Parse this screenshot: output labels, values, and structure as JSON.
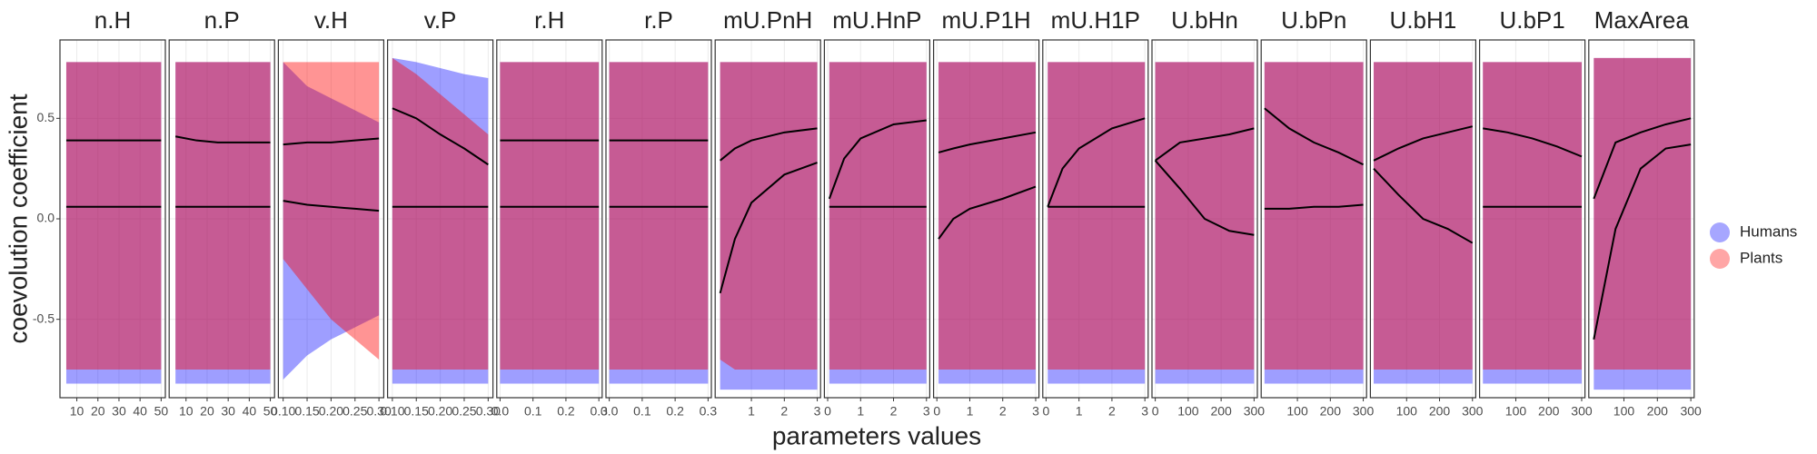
{
  "chart_data": {
    "type": "scatter",
    "x_label": "parameters values",
    "y_label": "coevolution coefficient",
    "ylim": [
      -0.89,
      0.89
    ],
    "yticks": [
      -0.5,
      {
        "value": 0,
        "label": "0.0"
      },
      0.5
    ],
    "grid": true,
    "legend": "right",
    "series": [
      {
        "name": "Humans",
        "color": "#0000ff"
      },
      {
        "name": "Plants",
        "color": "#ff0000"
      }
    ],
    "panels": [
      {
        "title": "n.H",
        "xlim": [
          2,
          52
        ],
        "xticks": [
          10,
          20,
          30,
          40,
          50
        ],
        "x": [
          5,
          15,
          25,
          35,
          50
        ],
        "smooth": [
          [
            0.06,
            0.06,
            0.06,
            0.06,
            0.06
          ],
          [
            0.39,
            0.39,
            0.39,
            0.39,
            0.39
          ]
        ],
        "low": [
          [
            -0.82,
            -0.82,
            -0.82,
            -0.82,
            -0.82
          ],
          [
            -0.75,
            -0.75,
            -0.75,
            -0.75,
            -0.75
          ]
        ],
        "high": [
          [
            0.78,
            0.78,
            0.78,
            0.78,
            0.78
          ],
          [
            0.78,
            0.78,
            0.78,
            0.78,
            0.78
          ]
        ]
      },
      {
        "title": "n.P",
        "xlim": [
          2,
          52
        ],
        "xticks": [
          10,
          20,
          30,
          40,
          50
        ],
        "x": [
          5,
          15,
          25,
          35,
          50
        ],
        "smooth": [
          [
            0.06,
            0.06,
            0.06,
            0.06,
            0.06
          ],
          [
            0.41,
            0.39,
            0.38,
            0.38,
            0.38
          ]
        ],
        "low": [
          [
            -0.82,
            -0.82,
            -0.82,
            -0.82,
            -0.82
          ],
          [
            -0.75,
            -0.75,
            -0.75,
            -0.75,
            -0.75
          ]
        ],
        "high": [
          [
            0.78,
            0.78,
            0.78,
            0.78,
            0.78
          ],
          [
            0.78,
            0.78,
            0.78,
            0.78,
            0.78
          ]
        ]
      },
      {
        "title": "v.H",
        "xlim": [
          0.09,
          0.31
        ],
        "xticks": [
          {
            "value": 0.1,
            "label": "0.10"
          },
          0.15,
          {
            "value": 0.2,
            "label": "0.20"
          },
          0.25,
          {
            "value": 0.3,
            "label": "0.30"
          }
        ],
        "x": [
          0.1,
          0.15,
          0.2,
          0.25,
          0.3
        ],
        "smooth": [
          [
            0.09,
            0.07,
            0.06,
            0.05,
            0.04
          ],
          [
            0.37,
            0.38,
            0.38,
            0.39,
            0.4
          ]
        ],
        "low": [
          [
            -0.8,
            -0.68,
            -0.6,
            -0.54,
            -0.48
          ],
          [
            -0.2,
            -0.35,
            -0.5,
            -0.6,
            -0.7
          ]
        ],
        "high": [
          [
            0.78,
            0.66,
            0.6,
            0.54,
            0.48
          ],
          [
            0.78,
            0.78,
            0.78,
            0.78,
            0.78
          ]
        ]
      },
      {
        "title": "v.P",
        "xlim": [
          0.09,
          0.31
        ],
        "xticks": [
          {
            "value": 0.1,
            "label": "0.10"
          },
          0.15,
          {
            "value": 0.2,
            "label": "0.20"
          },
          0.25,
          {
            "value": 0.3,
            "label": "0.30"
          }
        ],
        "x": [
          0.1,
          0.15,
          0.2,
          0.25,
          0.3
        ],
        "smooth": [
          [
            0.06,
            0.06,
            0.06,
            0.06,
            0.06
          ],
          [
            0.55,
            0.5,
            0.42,
            0.35,
            0.27
          ]
        ],
        "low": [
          [
            -0.82,
            -0.82,
            -0.82,
            -0.82,
            -0.82
          ],
          [
            -0.75,
            -0.75,
            -0.75,
            -0.75,
            -0.75
          ]
        ],
        "high": [
          [
            0.8,
            0.78,
            0.75,
            0.72,
            0.7
          ],
          [
            0.8,
            0.72,
            0.62,
            0.52,
            0.42
          ]
        ]
      },
      {
        "title": "r.H",
        "xlim": [
          -0.01,
          0.31
        ],
        "xticks": [
          {
            "value": 0,
            "label": "0.0"
          },
          0.1,
          0.2,
          0.3
        ],
        "x": [
          0,
          0.075,
          0.15,
          0.225,
          0.3
        ],
        "smooth": [
          [
            0.06,
            0.06,
            0.06,
            0.06,
            0.06
          ],
          [
            0.39,
            0.39,
            0.39,
            0.39,
            0.39
          ]
        ],
        "low": [
          [
            -0.82,
            -0.82,
            -0.82,
            -0.82,
            -0.82
          ],
          [
            -0.75,
            -0.75,
            -0.75,
            -0.75,
            -0.75
          ]
        ],
        "high": [
          [
            0.78,
            0.78,
            0.78,
            0.78,
            0.78
          ],
          [
            0.78,
            0.78,
            0.78,
            0.78,
            0.78
          ]
        ]
      },
      {
        "title": "r.P",
        "xlim": [
          -0.01,
          0.31
        ],
        "xticks": [
          {
            "value": 0,
            "label": "0.0"
          },
          0.1,
          0.2,
          0.3
        ],
        "x": [
          0,
          0.075,
          0.15,
          0.225,
          0.3
        ],
        "smooth": [
          [
            0.06,
            0.06,
            0.06,
            0.06,
            0.06
          ],
          [
            0.39,
            0.39,
            0.39,
            0.39,
            0.39
          ]
        ],
        "low": [
          [
            -0.82,
            -0.82,
            -0.82,
            -0.82,
            -0.82
          ],
          [
            -0.75,
            -0.75,
            -0.75,
            -0.75,
            -0.75
          ]
        ],
        "high": [
          [
            0.78,
            0.78,
            0.78,
            0.78,
            0.78
          ],
          [
            0.78,
            0.78,
            0.78,
            0.78,
            0.78
          ]
        ]
      },
      {
        "title": "mU.PnH",
        "xlim": [
          -0.1,
          3.1
        ],
        "xticks": [
          1,
          2,
          3
        ],
        "x": [
          0.05,
          0.5,
          1,
          2,
          3
        ],
        "smooth": [
          [
            -0.37,
            -0.1,
            0.08,
            0.22,
            0.28
          ],
          [
            0.29,
            0.35,
            0.39,
            0.43,
            0.45
          ]
        ],
        "low": [
          [
            -0.85,
            -0.85,
            -0.85,
            -0.85,
            -0.85
          ],
          [
            -0.7,
            -0.75,
            -0.75,
            -0.75,
            -0.75
          ]
        ],
        "high": [
          [
            0.78,
            0.78,
            0.78,
            0.78,
            0.78
          ],
          [
            0.78,
            0.78,
            0.78,
            0.78,
            0.78
          ]
        ]
      },
      {
        "title": "mU.HnP",
        "xlim": [
          -0.1,
          3.1
        ],
        "xticks": [
          0,
          1,
          2,
          3
        ],
        "x": [
          0.05,
          0.5,
          1,
          2,
          3
        ],
        "smooth": [
          [
            0.06,
            0.06,
            0.06,
            0.06,
            0.06
          ],
          [
            0.1,
            0.3,
            0.4,
            0.47,
            0.49
          ]
        ],
        "low": [
          [
            -0.82,
            -0.82,
            -0.82,
            -0.82,
            -0.82
          ],
          [
            -0.75,
            -0.75,
            -0.75,
            -0.75,
            -0.75
          ]
        ],
        "high": [
          [
            0.78,
            0.78,
            0.78,
            0.78,
            0.78
          ],
          [
            0.78,
            0.78,
            0.78,
            0.78,
            0.78
          ]
        ]
      },
      {
        "title": "mU.P1H",
        "xlim": [
          -0.1,
          3.1
        ],
        "xticks": [
          0,
          1,
          2,
          3
        ],
        "x": [
          0.05,
          0.5,
          1,
          2,
          3
        ],
        "smooth": [
          [
            -0.1,
            0,
            0.05,
            0.1,
            0.16
          ],
          [
            0.33,
            0.35,
            0.37,
            0.4,
            0.43
          ]
        ],
        "low": [
          [
            -0.82,
            -0.82,
            -0.82,
            -0.82,
            -0.82
          ],
          [
            -0.75,
            -0.75,
            -0.75,
            -0.75,
            -0.75
          ]
        ],
        "high": [
          [
            0.78,
            0.78,
            0.78,
            0.78,
            0.78
          ],
          [
            0.78,
            0.78,
            0.78,
            0.78,
            0.78
          ]
        ]
      },
      {
        "title": "mU.H1P",
        "xlim": [
          -0.1,
          3.1
        ],
        "xticks": [
          0,
          1,
          2,
          3
        ],
        "x": [
          0.05,
          0.5,
          1,
          2,
          3
        ],
        "smooth": [
          [
            0.06,
            0.06,
            0.06,
            0.06,
            0.06
          ],
          [
            0.06,
            0.25,
            0.35,
            0.45,
            0.5
          ]
        ],
        "low": [
          [
            -0.82,
            -0.82,
            -0.82,
            -0.82,
            -0.82
          ],
          [
            -0.75,
            -0.75,
            -0.75,
            -0.75,
            -0.75
          ]
        ],
        "high": [
          [
            0.78,
            0.78,
            0.78,
            0.78,
            0.78
          ],
          [
            0.78,
            0.78,
            0.78,
            0.78,
            0.78
          ]
        ]
      },
      {
        "title": "U.bHn",
        "xlim": [
          -10,
          310
        ],
        "xticks": [
          0,
          100,
          200,
          300
        ],
        "x": [
          0,
          75,
          150,
          225,
          300
        ],
        "smooth": [
          [
            0.29,
            0.15,
            0,
            -0.06,
            -0.08
          ],
          [
            0.29,
            0.38,
            0.4,
            0.42,
            0.45
          ]
        ],
        "low": [
          [
            -0.82,
            -0.82,
            -0.82,
            -0.82,
            -0.82
          ],
          [
            -0.75,
            -0.75,
            -0.75,
            -0.75,
            -0.75
          ]
        ],
        "high": [
          [
            0.78,
            0.78,
            0.78,
            0.78,
            0.78
          ],
          [
            0.78,
            0.78,
            0.78,
            0.78,
            0.78
          ]
        ]
      },
      {
        "title": "U.bPn",
        "xlim": [
          -10,
          310
        ],
        "xticks": [
          100,
          200,
          300
        ],
        "x": [
          0,
          75,
          150,
          225,
          300
        ],
        "smooth": [
          [
            0.05,
            0.05,
            0.06,
            0.06,
            0.07
          ],
          [
            0.55,
            0.45,
            0.38,
            0.33,
            0.27
          ]
        ],
        "low": [
          [
            -0.82,
            -0.82,
            -0.82,
            -0.82,
            -0.82
          ],
          [
            -0.75,
            -0.75,
            -0.75,
            -0.75,
            -0.75
          ]
        ],
        "high": [
          [
            0.78,
            0.78,
            0.78,
            0.78,
            0.78
          ],
          [
            0.78,
            0.78,
            0.78,
            0.78,
            0.78
          ]
        ]
      },
      {
        "title": "U.bH1",
        "xlim": [
          -10,
          310
        ],
        "xticks": [
          100,
          200,
          300
        ],
        "x": [
          0,
          75,
          150,
          225,
          300
        ],
        "smooth": [
          [
            0.25,
            0.12,
            0,
            -0.05,
            -0.12
          ],
          [
            0.29,
            0.35,
            0.4,
            0.43,
            0.46
          ]
        ],
        "low": [
          [
            -0.82,
            -0.82,
            -0.82,
            -0.82,
            -0.82
          ],
          [
            -0.75,
            -0.75,
            -0.75,
            -0.75,
            -0.75
          ]
        ],
        "high": [
          [
            0.78,
            0.78,
            0.78,
            0.78,
            0.78
          ],
          [
            0.78,
            0.78,
            0.78,
            0.78,
            0.78
          ]
        ]
      },
      {
        "title": "U.bP1",
        "xlim": [
          -10,
          310
        ],
        "xticks": [
          100,
          200,
          300
        ],
        "x": [
          0,
          75,
          150,
          225,
          300
        ],
        "smooth": [
          [
            0.06,
            0.06,
            0.06,
            0.06,
            0.06
          ],
          [
            0.45,
            0.43,
            0.4,
            0.36,
            0.31
          ]
        ],
        "low": [
          [
            -0.82,
            -0.82,
            -0.82,
            -0.82,
            -0.82
          ],
          [
            -0.75,
            -0.75,
            -0.75,
            -0.75,
            -0.75
          ]
        ],
        "high": [
          [
            0.78,
            0.78,
            0.78,
            0.78,
            0.78
          ],
          [
            0.78,
            0.78,
            0.78,
            0.78,
            0.78
          ]
        ]
      },
      {
        "title": "MaxArea",
        "xlim": [
          -5,
          310
        ],
        "xticks": [
          100,
          200,
          300
        ],
        "x": [
          10,
          75,
          150,
          225,
          300
        ],
        "smooth": [
          [
            -0.6,
            -0.05,
            0.25,
            0.35,
            0.37
          ],
          [
            0.1,
            0.38,
            0.43,
            0.47,
            0.5
          ]
        ],
        "low": [
          [
            -0.85,
            -0.85,
            -0.85,
            -0.85,
            -0.85
          ],
          [
            -0.75,
            -0.75,
            -0.75,
            -0.75,
            -0.75
          ]
        ],
        "high": [
          [
            0.8,
            0.8,
            0.8,
            0.8,
            0.8
          ],
          [
            0.8,
            0.8,
            0.8,
            0.8,
            0.8
          ]
        ]
      }
    ]
  }
}
